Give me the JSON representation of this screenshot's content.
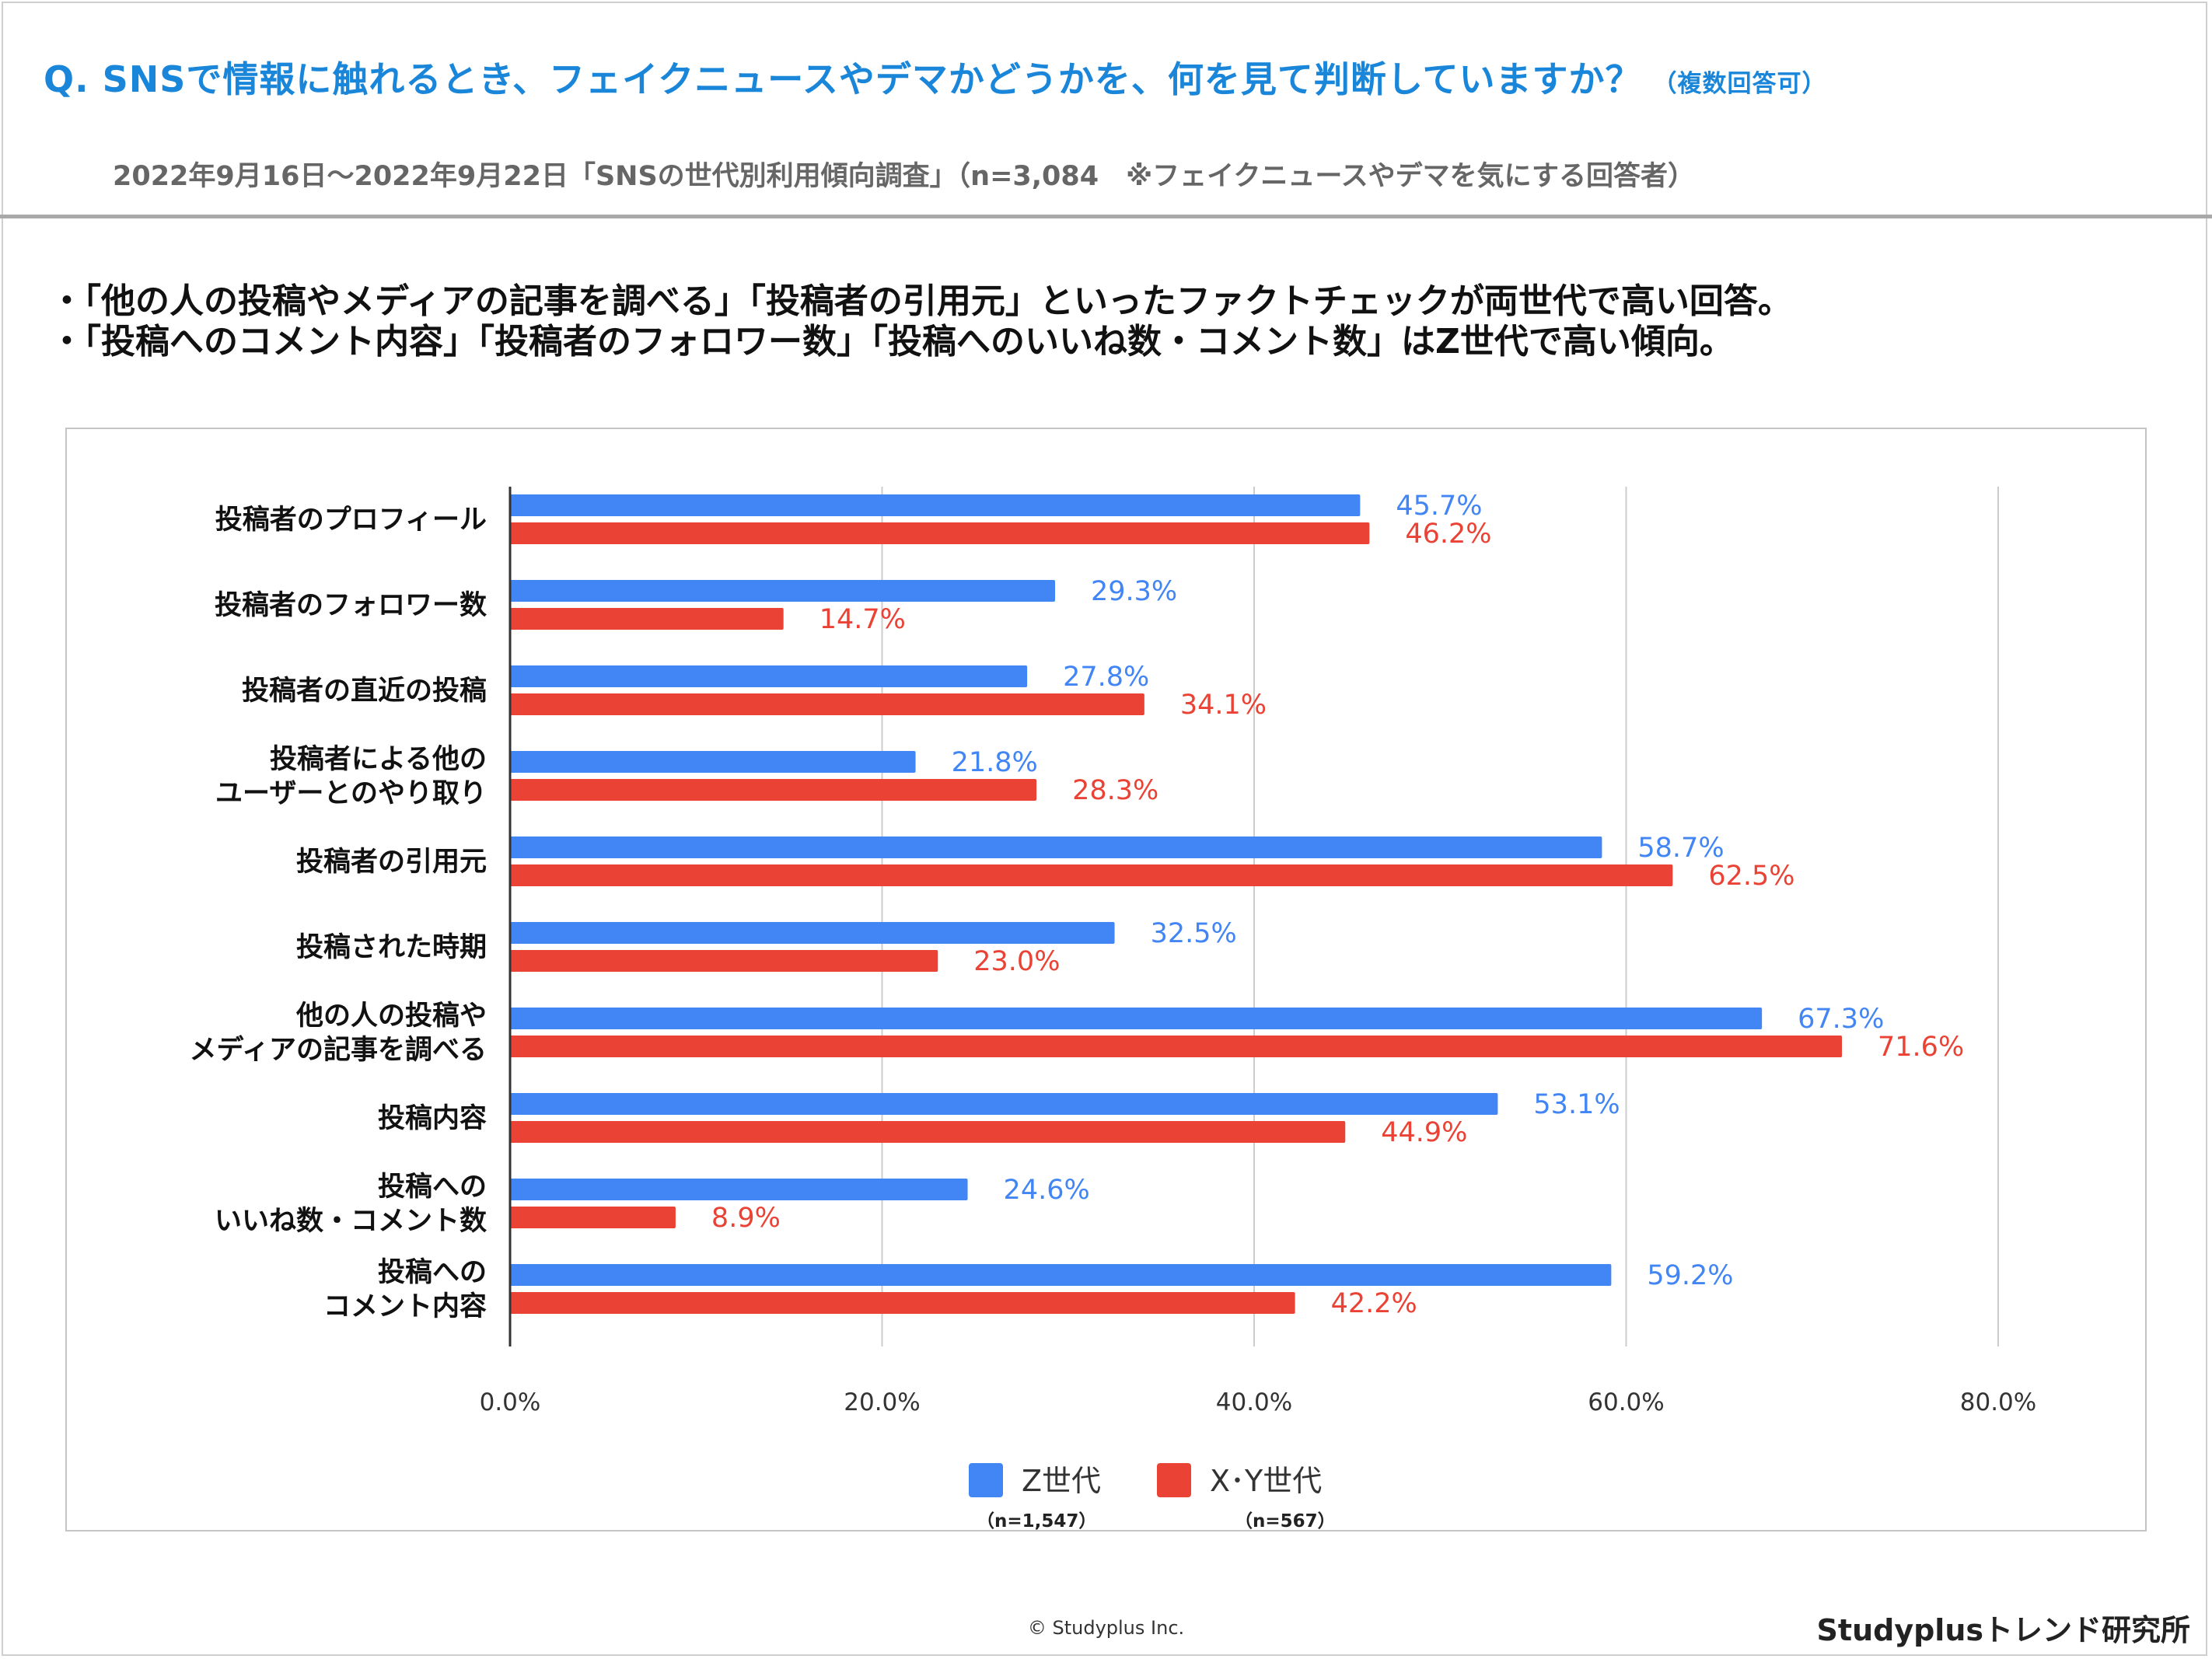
{
  "header": {
    "title": "Q. SNSで情報に触れるとき、フェイクニュースやデマかどうかを、何を見て判断していますか？",
    "title_note": "（複数回答可）",
    "subtitle": "2022年9月16日～2022年9月22日「SNSの世代別利用傾向調査」（n=3,084　※フェイクニュースやデマを気にする回答者）"
  },
  "bullets": [
    "・「他の人の投稿やメディアの記事を調べる」「投稿者の引用元」といったファクトチェックが両世代で高い回答。",
    "・「投稿へのコメント内容」「投稿者のフォロワー数」「投稿へのいいね数・コメント数」はZ世代で高い傾向。"
  ],
  "chart_data": {
    "type": "bar",
    "orientation": "horizontal",
    "categories": [
      [
        "投稿者のプロフィール"
      ],
      [
        "投稿者のフォロワー数"
      ],
      [
        "投稿者の直近の投稿"
      ],
      [
        "投稿者による他の",
        "ユーザーとのやり取り"
      ],
      [
        "投稿者の引用元"
      ],
      [
        "投稿された時期"
      ],
      [
        "他の人の投稿や",
        "メディアの記事を調べる"
      ],
      [
        "投稿内容"
      ],
      [
        "投稿への",
        "いいね数・コメント数"
      ],
      [
        "投稿への",
        "コメント内容"
      ]
    ],
    "series": [
      {
        "name": "Z世代",
        "sample": "（n=1,547）",
        "color": "#4285f4",
        "values": [
          45.7,
          29.3,
          27.8,
          21.8,
          58.7,
          32.5,
          67.3,
          53.1,
          24.6,
          59.2
        ],
        "labels": [
          "45.7%",
          "29.3%",
          "27.8%",
          "21.8%",
          "58.7%",
          "32.5%",
          "67.3%",
          "53.1%",
          "24.6%",
          "59.2%"
        ]
      },
      {
        "name": "X･Y世代",
        "sample": "（n=567）",
        "color": "#ea4335",
        "values": [
          46.2,
          14.7,
          34.1,
          28.3,
          62.5,
          23.0,
          71.6,
          44.9,
          8.9,
          42.2
        ],
        "labels": [
          "46.2%",
          "14.7%",
          "34.1%",
          "28.3%",
          "62.5%",
          "23.0%",
          "71.6%",
          "44.9%",
          "8.9%",
          "42.2%"
        ]
      }
    ],
    "xlim": [
      0,
      80
    ],
    "xticks": [
      0,
      20,
      40,
      60,
      80
    ],
    "xtick_labels": [
      "0.0%",
      "20.0%",
      "40.0%",
      "60.0%",
      "80.0%"
    ],
    "grid": true,
    "legend_position": "bottom-center"
  },
  "footer": {
    "copyright": "© Studyplus Inc.",
    "brand": "Studyplusトレンド研究所"
  }
}
